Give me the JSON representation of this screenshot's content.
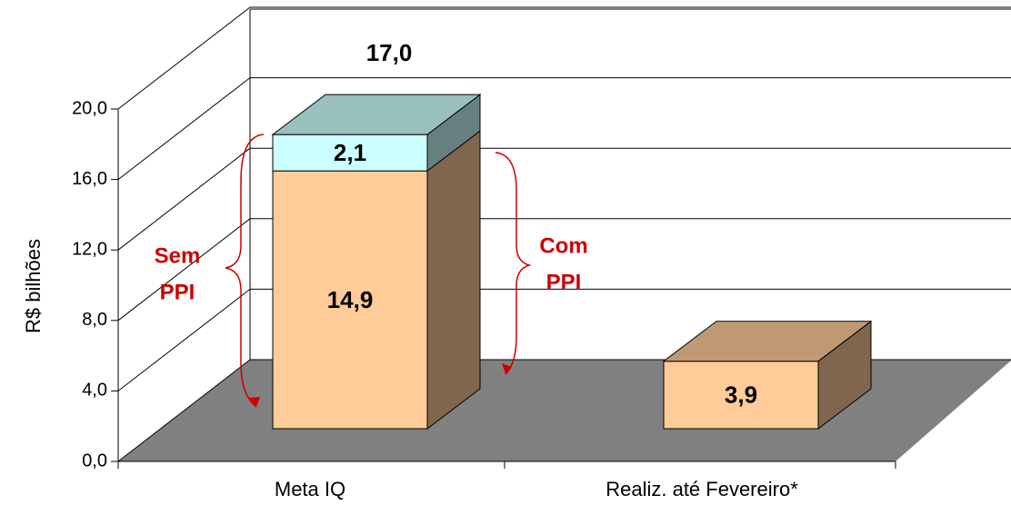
{
  "chart_data": {
    "type": "bar3d_stacked",
    "y_label": "R$ bilhões",
    "categories": [
      "Meta IQ",
      "Realiz. até Fevereiro*"
    ],
    "series": [
      {
        "name": null,
        "color": "#ffcc99",
        "values": [
          14.9,
          3.9
        ],
        "value_labels": [
          "14,9",
          "3,9"
        ]
      },
      {
        "name": null,
        "color": "#ccffff",
        "values": [
          2.1,
          null
        ],
        "value_labels": [
          "2,1",
          null
        ]
      }
    ],
    "total_label": "17,0",
    "annotations": [
      "Sem",
      "PPI",
      "Com",
      "PPI"
    ],
    "ylim": [
      0,
      20
    ],
    "yticks": [
      {
        "value": 0,
        "label": "0,0"
      },
      {
        "value": 4,
        "label": "4,0"
      },
      {
        "value": 8,
        "label": "8,0"
      },
      {
        "value": 12,
        "label": "12,0"
      },
      {
        "value": 16,
        "label": "16,0"
      },
      {
        "value": 20,
        "label": "20,0"
      }
    ],
    "floor_color": "#808080",
    "annotation_color": "#cc0000"
  }
}
